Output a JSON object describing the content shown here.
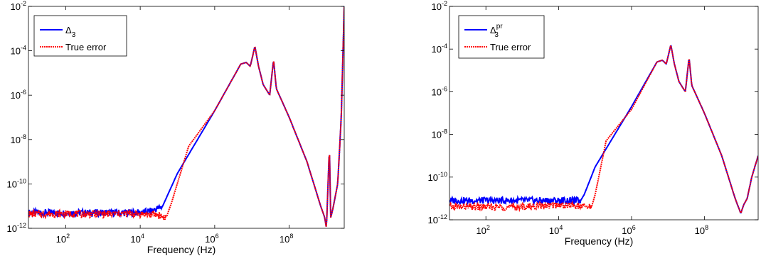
{
  "chart_data": [
    {
      "type": "line",
      "xscale": "log",
      "yscale": "log",
      "xlim": [
        10,
        3000000000.0
      ],
      "ylim": [
        1e-12,
        0.01
      ],
      "xlabel": "Frequency (Hz)",
      "ylabel": "",
      "xticks": [
        100,
        10000,
        1000000,
        100000000
      ],
      "xtick_labels": [
        {
          "base": "10",
          "exp": "2"
        },
        {
          "base": "10",
          "exp": "4"
        },
        {
          "base": "10",
          "exp": "6"
        },
        {
          "base": "10",
          "exp": "8"
        }
      ],
      "yticks": [
        1e-12,
        1e-10,
        1e-08,
        1e-06,
        0.0001,
        0.01
      ],
      "ytick_labels": [
        {
          "base": "10",
          "exp": "-12"
        },
        {
          "base": "10",
          "exp": "-10"
        },
        {
          "base": "10",
          "exp": "-8"
        },
        {
          "base": "10",
          "exp": "-6"
        },
        {
          "base": "10",
          "exp": "-4"
        },
        {
          "base": "10",
          "exp": "-2"
        }
      ],
      "legend_position": "top-left",
      "series": [
        {
          "name": "Δ3",
          "legend": {
            "main": "Δ",
            "sub": "3",
            "sup": ""
          },
          "color": "#0000ff",
          "style": "solid",
          "x": [
            10,
            1000,
            10000,
            20000,
            40000,
            100000,
            1000000,
            5000000,
            7000000,
            9000000,
            12000000,
            15000000,
            20000000,
            30000000,
            38000000,
            45000000,
            100000000,
            300000000,
            700000000,
            900000000,
            1000000000,
            1200000000,
            1300000000,
            1500000000,
            2000000000,
            2500000000,
            3000000000
          ],
          "y": [
            5e-12,
            5e-12,
            5e-12,
            6e-12,
            1e-11,
            3e-10,
            2e-07,
            2.5e-05,
            3e-05,
            2e-05,
            0.00016,
            2e-05,
            3e-06,
            1e-06,
            4e-05,
            2e-06,
            1e-07,
            1e-09,
            1e-11,
            3e-12,
            1e-12,
            5e-09,
            3e-12,
            8e-12,
            1e-10,
            1e-07,
            0.01
          ],
          "noise_band": [
            10,
            40000
          ]
        },
        {
          "name": "True error",
          "legend": {
            "main": "True error",
            "sub": "",
            "sup": ""
          },
          "color": "#ff0000",
          "style": "dotted",
          "x": [
            10,
            1000,
            10000,
            30000,
            50000,
            70000,
            200000,
            1000000,
            5000000,
            7000000,
            9000000,
            12000000,
            15000000,
            20000000,
            30000000,
            38000000,
            45000000,
            100000000,
            300000000,
            700000000,
            900000000,
            1000000000,
            1200000000,
            1300000000,
            1500000000,
            2000000000,
            2500000000,
            3000000000
          ],
          "y": [
            4.5e-12,
            4.5e-12,
            4.5e-12,
            4e-12,
            3e-12,
            1.5e-11,
            5e-09,
            2e-07,
            2.5e-05,
            3e-05,
            2e-05,
            0.00016,
            2e-05,
            3e-06,
            1e-06,
            4e-05,
            2e-06,
            1e-07,
            1e-09,
            1e-11,
            3e-12,
            1e-12,
            5e-09,
            3e-12,
            8e-12,
            1e-10,
            1e-07,
            0.01
          ],
          "noise_band": [
            10,
            50000
          ]
        }
      ]
    },
    {
      "type": "line",
      "xscale": "log",
      "yscale": "log",
      "xlim": [
        10,
        3000000000.0
      ],
      "ylim": [
        1e-12,
        0.01
      ],
      "xlabel": "Frequency (Hz)",
      "ylabel": "",
      "xticks": [
        100,
        10000,
        1000000,
        100000000
      ],
      "xtick_labels": [
        {
          "base": "10",
          "exp": "2"
        },
        {
          "base": "10",
          "exp": "4"
        },
        {
          "base": "10",
          "exp": "6"
        },
        {
          "base": "10",
          "exp": "8"
        }
      ],
      "yticks": [
        1e-12,
        1e-10,
        1e-08,
        1e-06,
        0.0001,
        0.01
      ],
      "ytick_labels": [
        {
          "base": "10",
          "exp": "-12"
        },
        {
          "base": "10",
          "exp": "-10"
        },
        {
          "base": "10",
          "exp": "-8"
        },
        {
          "base": "10",
          "exp": "-6"
        },
        {
          "base": "10",
          "exp": "-4"
        },
        {
          "base": "10",
          "exp": "-2"
        }
      ],
      "legend_position": "top-left",
      "series": [
        {
          "name": "Δ3pr",
          "legend": {
            "main": "Δ",
            "sub": "3",
            "sup": "pr"
          },
          "color": "#0000ff",
          "style": "solid",
          "x": [
            10,
            1000,
            10000,
            40000,
            50000,
            100000,
            1000000,
            5000000,
            7000000,
            9000000,
            12000000,
            15000000,
            20000000,
            30000000,
            38000000,
            45000000,
            100000000,
            300000000,
            700000000,
            1000000000,
            1200000000,
            1500000000,
            2000000000,
            3000000000
          ],
          "y": [
            8e-12,
            8e-12,
            8e-12,
            8e-12,
            1.5e-11,
            3e-10,
            2e-07,
            2.5e-05,
            3e-05,
            2e-05,
            0.00016,
            2e-05,
            3e-06,
            1e-06,
            4e-05,
            2e-06,
            1e-07,
            1e-09,
            1e-11,
            2e-12,
            5e-12,
            1e-11,
            1e-10,
            1e-09
          ],
          "noise_band": [
            10,
            40000
          ]
        },
        {
          "name": "True error",
          "legend": {
            "main": "True error",
            "sub": "",
            "sup": ""
          },
          "color": "#ff0000",
          "style": "dotted",
          "x": [
            10,
            1000,
            10000,
            80000,
            100000,
            200000,
            1000000,
            5000000,
            7000000,
            9000000,
            12000000,
            15000000,
            20000000,
            30000000,
            38000000,
            45000000,
            100000000,
            300000000,
            700000000,
            1000000000,
            1200000000,
            1500000000,
            2000000000,
            3000000000
          ],
          "y": [
            4e-12,
            4e-12,
            5e-12,
            4e-12,
            1.5e-11,
            5e-09,
            1.5e-07,
            2.5e-05,
            3e-05,
            2e-05,
            0.00016,
            2e-05,
            3e-06,
            1e-06,
            4e-05,
            2e-06,
            1e-07,
            1e-09,
            1e-11,
            2e-12,
            5e-12,
            1e-11,
            1e-10,
            1e-09
          ],
          "noise_band": [
            10,
            80000
          ]
        }
      ]
    }
  ]
}
